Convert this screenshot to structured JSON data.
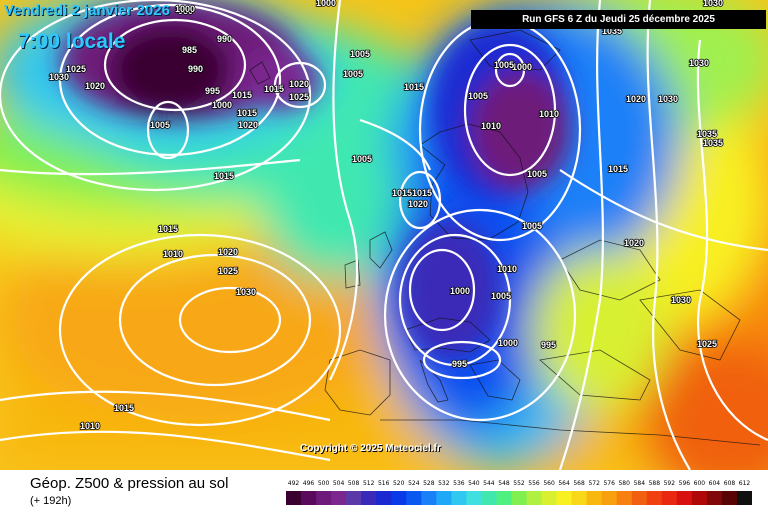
{
  "header": {
    "date_line": "Vendredi 2 janvier 2026",
    "time_line": "7:00 locale",
    "run_info": "Run GFS 6 Z du Jeudi 25 décembre 2025"
  },
  "footer": {
    "parameter": "Géop. Z500 & pression au sol",
    "lead_time": "(+ 192h)",
    "copyright": "Copyright © 2025 Meteociel.fr"
  },
  "scale": {
    "labels": [
      "492",
      "496",
      "500",
      "504",
      "508",
      "512",
      "516",
      "520",
      "524",
      "528",
      "532",
      "536",
      "540",
      "544",
      "548",
      "552",
      "556",
      "560",
      "564",
      "568",
      "572",
      "576",
      "580",
      "584",
      "588",
      "592",
      "596",
      "600",
      "604",
      "608",
      "612"
    ],
    "colors": [
      "#3a0030",
      "#5a0a5a",
      "#6e1a7a",
      "#7a2890",
      "#5a3aa8",
      "#3a2ab8",
      "#1a2ad0",
      "#0a3ae8",
      "#0a58f0",
      "#1a80f8",
      "#20a8f8",
      "#30c8f0",
      "#40e0e0",
      "#40e8b0",
      "#50f080",
      "#80f050",
      "#b0f040",
      "#d8f030",
      "#f8f020",
      "#f8d818",
      "#f8b810",
      "#f8a010",
      "#f88010",
      "#f06010",
      "#f04010",
      "#e82810",
      "#d81010",
      "#b00808",
      "#800808",
      "#580404",
      "#101010"
    ]
  },
  "pressure_labels": [
    {
      "text": "980"
    },
    {
      "text": "985"
    },
    {
      "text": "990"
    },
    {
      "text": "990"
    },
    {
      "text": "995"
    },
    {
      "text": "1000"
    },
    {
      "text": "1005"
    },
    {
      "text": "1015"
    },
    {
      "text": "1020"
    },
    {
      "text": "1025"
    },
    {
      "text": "1030"
    },
    {
      "text": "1000"
    },
    {
      "text": "1005"
    },
    {
      "text": "1005"
    },
    {
      "text": "1015"
    },
    {
      "text": "1020"
    },
    {
      "text": "1015"
    },
    {
      "text": "1025"
    },
    {
      "text": "1020"
    },
    {
      "text": "1015"
    },
    {
      "text": "1005"
    },
    {
      "text": "1000"
    },
    {
      "text": "1005"
    },
    {
      "text": "1015"
    },
    {
      "text": "1010"
    },
    {
      "text": "1015"
    },
    {
      "text": "1020"
    },
    {
      "text": "1025"
    },
    {
      "text": "1030"
    },
    {
      "text": "1005"
    },
    {
      "text": "1005"
    },
    {
      "text": "1010"
    },
    {
      "text": "1010"
    },
    {
      "text": "1015"
    },
    {
      "text": "1015"
    },
    {
      "text": "1020"
    },
    {
      "text": "1005"
    },
    {
      "text": "1010"
    },
    {
      "text": "1000"
    },
    {
      "text": "1005"
    },
    {
      "text": "1000"
    },
    {
      "text": "995"
    },
    {
      "text": "995"
    },
    {
      "text": "1015"
    },
    {
      "text": "1020"
    },
    {
      "text": "1025"
    },
    {
      "text": "1020"
    },
    {
      "text": "1030"
    },
    {
      "text": "1030"
    },
    {
      "text": "1035"
    },
    {
      "text": "1035"
    },
    {
      "text": "1030"
    },
    {
      "text": "1025"
    },
    {
      "text": "1015"
    },
    {
      "text": "1010"
    },
    {
      "text": "1000"
    },
    {
      "text": "1030"
    },
    {
      "text": "1035"
    }
  ]
}
